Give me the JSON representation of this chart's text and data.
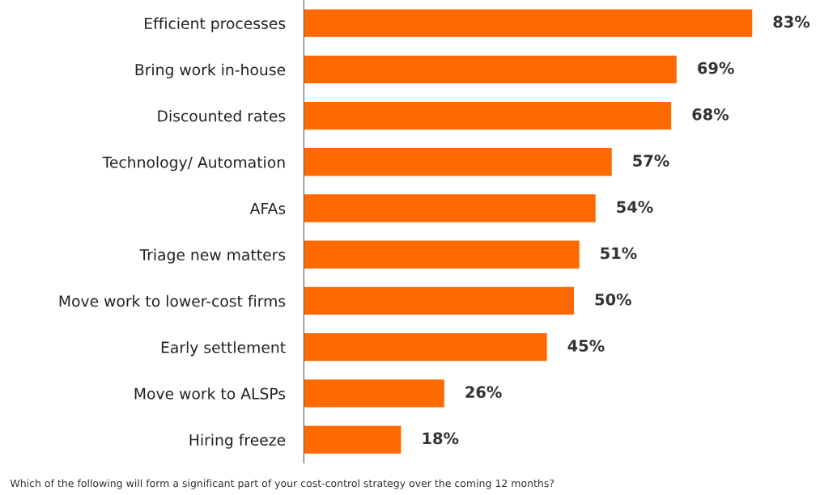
{
  "chart_data": {
    "type": "bar",
    "orientation": "horizontal",
    "categories": [
      "Efficient processes",
      "Bring work in-house",
      "Discounted rates",
      "Technology/ Automation",
      "AFAs",
      "Triage new matters",
      "Move work to lower-cost firms",
      "Early settlement",
      "Move work to ALSPs",
      "Hiring freeze"
    ],
    "values": [
      83,
      69,
      68,
      57,
      54,
      51,
      50,
      45,
      26,
      18
    ],
    "value_labels": [
      "83%",
      "69%",
      "68%",
      "57%",
      "54%",
      "51%",
      "50%",
      "45%",
      "26%",
      "18%"
    ],
    "color": "#ff6a00",
    "grid": false,
    "legend": false,
    "annotations": [
      "Which of the following will form a significant part of your cost-control strategy over the coming 12 months?"
    ]
  }
}
